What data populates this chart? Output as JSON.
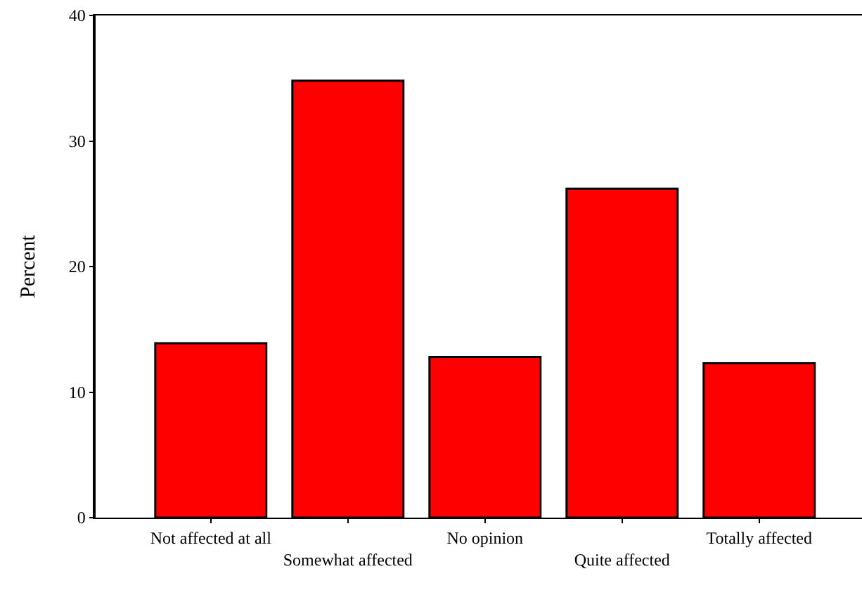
{
  "chart_data": {
    "type": "bar",
    "ylabel": "Percent",
    "categories": [
      "Not affected at all",
      "Somewhat affected",
      "No opinion",
      "Quite affected",
      "Totally affected"
    ],
    "values": [
      13.9,
      34.8,
      12.8,
      26.2,
      12.3
    ],
    "color": "#ff0000",
    "ylim": [
      0,
      40
    ],
    "yticks": [
      0,
      10,
      20,
      30,
      40
    ]
  }
}
